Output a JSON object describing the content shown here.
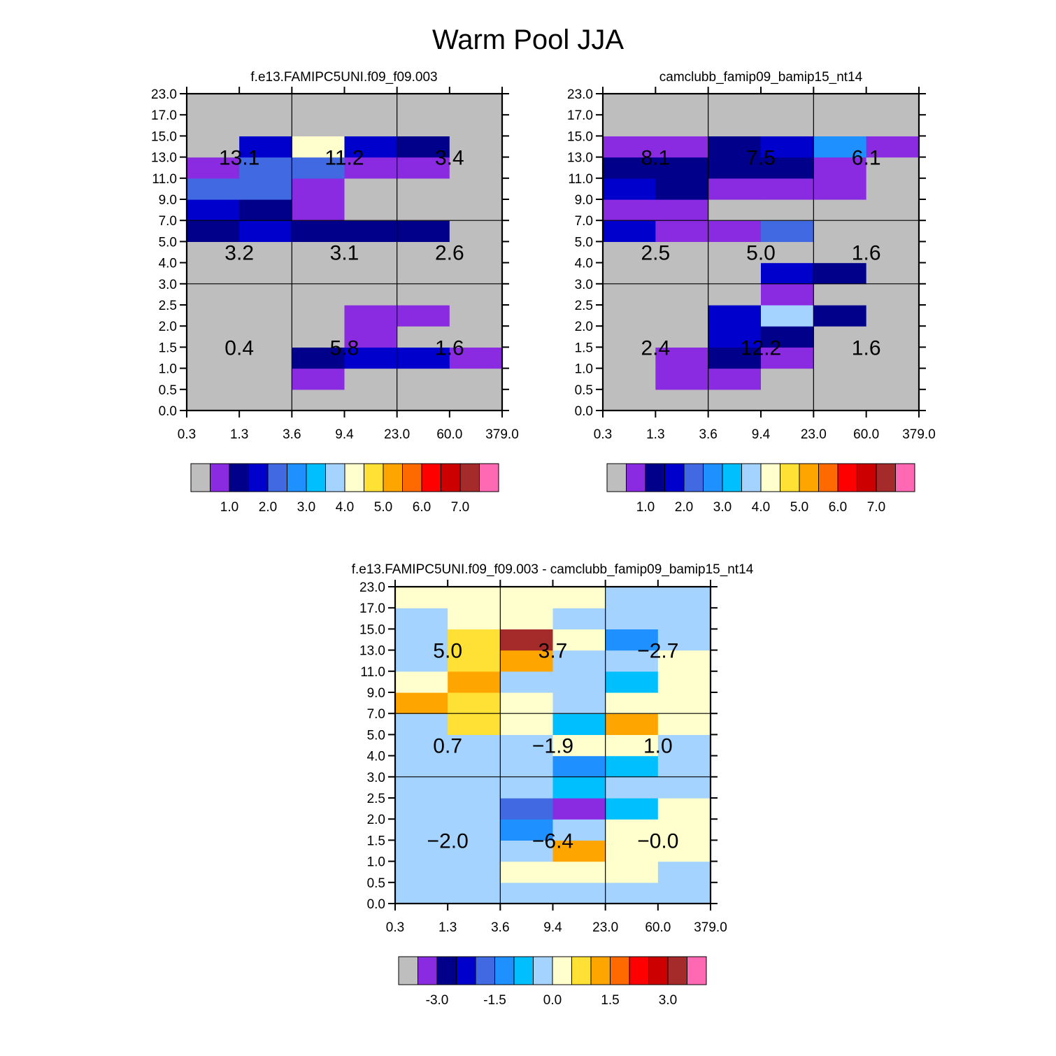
{
  "title": "Warm Pool JJA",
  "colors": {
    "palette": [
      "#bebebe",
      "#8a2be2",
      "#00008b",
      "#0000cd",
      "#4169e1",
      "#1e90ff",
      "#00bfff",
      "#a4d3ff",
      "#ffffcd",
      "#ffe135",
      "#ffa500",
      "#ff6a00",
      "#ff0000",
      "#cd0000",
      "#a52a2a",
      "#ff69b4"
    ],
    "grid_line": "#000000",
    "background": "#ffffff"
  },
  "chart_data": [
    {
      "type": "heatmap",
      "title": "f.e13.FAMIPC5UNI.f09_f09.003",
      "x_ticks": [
        "0.3",
        "1.3",
        "3.6",
        "9.4",
        "23.0",
        "60.0",
        "379.0"
      ],
      "y_ticks": [
        "0.0",
        "0.5",
        "1.0",
        "1.5",
        "2.0",
        "2.5",
        "3.0",
        "4.0",
        "5.0",
        "7.0",
        "9.0",
        "11.0",
        "13.0",
        "15.0",
        "17.0",
        "23.0"
      ],
      "colorbar_labels": [
        "1.0",
        "2.0",
        "3.0",
        "4.0",
        "5.0",
        "6.0",
        "7.0"
      ],
      "cell_color_index_rows_bottom_to_top": [
        [
          0,
          0,
          0,
          0,
          0,
          0
        ],
        [
          0,
          0,
          1,
          0,
          0,
          0
        ],
        [
          0,
          0,
          2,
          3,
          3,
          1
        ],
        [
          0,
          0,
          0,
          1,
          0,
          0
        ],
        [
          0,
          0,
          0,
          1,
          1,
          0
        ],
        [
          0,
          0,
          0,
          0,
          0,
          0
        ],
        [
          0,
          0,
          0,
          0,
          0,
          0
        ],
        [
          0,
          0,
          0,
          0,
          0,
          0
        ],
        [
          2,
          3,
          2,
          2,
          2,
          0
        ],
        [
          3,
          2,
          1,
          0,
          0,
          0
        ],
        [
          4,
          4,
          1,
          0,
          0,
          0
        ],
        [
          1,
          4,
          4,
          1,
          1,
          0
        ],
        [
          0,
          3,
          8,
          3,
          2,
          0
        ],
        [
          0,
          0,
          0,
          0,
          0,
          0
        ],
        [
          0,
          0,
          0,
          0,
          0,
          0
        ]
      ],
      "region_totals": [
        {
          "value": "13.1",
          "region": "high-thin"
        },
        {
          "value": "11.2",
          "region": "high-medium"
        },
        {
          "value": "3.4",
          "region": "high-thick"
        },
        {
          "value": "3.2",
          "region": "middle-thin"
        },
        {
          "value": "3.1",
          "region": "middle-medium"
        },
        {
          "value": "2.6",
          "region": "middle-thick"
        },
        {
          "value": "0.4",
          "region": "low-thin"
        },
        {
          "value": "5.8",
          "region": "low-medium"
        },
        {
          "value": "1.6",
          "region": "low-thick"
        }
      ]
    },
    {
      "type": "heatmap",
      "title": "camclubb_famip09_bamip15_nt14",
      "x_ticks": [
        "0.3",
        "1.3",
        "3.6",
        "9.4",
        "23.0",
        "60.0",
        "379.0"
      ],
      "y_ticks": [
        "0.0",
        "0.5",
        "1.0",
        "1.5",
        "2.0",
        "2.5",
        "3.0",
        "4.0",
        "5.0",
        "7.0",
        "9.0",
        "11.0",
        "13.0",
        "15.0",
        "17.0",
        "23.0"
      ],
      "colorbar_labels": [
        "1.0",
        "2.0",
        "3.0",
        "4.0",
        "5.0",
        "6.0",
        "7.0"
      ],
      "cell_color_index_rows_bottom_to_top": [
        [
          0,
          0,
          0,
          0,
          0,
          0
        ],
        [
          0,
          1,
          1,
          0,
          0,
          0
        ],
        [
          0,
          1,
          2,
          1,
          0,
          0
        ],
        [
          0,
          0,
          3,
          2,
          0,
          0
        ],
        [
          0,
          0,
          3,
          7,
          2,
          0
        ],
        [
          0,
          0,
          0,
          1,
          0,
          0
        ],
        [
          0,
          0,
          0,
          3,
          2,
          0
        ],
        [
          0,
          0,
          0,
          0,
          0,
          0
        ],
        [
          3,
          1,
          1,
          4,
          0,
          0
        ],
        [
          1,
          1,
          0,
          0,
          0,
          0
        ],
        [
          3,
          2,
          1,
          1,
          1,
          0
        ],
        [
          2,
          2,
          2,
          2,
          1,
          0
        ],
        [
          1,
          1,
          2,
          3,
          5,
          1
        ],
        [
          0,
          0,
          0,
          0,
          0,
          0
        ],
        [
          0,
          0,
          0,
          0,
          0,
          0
        ]
      ],
      "region_totals": [
        {
          "value": "8.1",
          "region": "high-thin"
        },
        {
          "value": "7.5",
          "region": "high-medium"
        },
        {
          "value": "6.1",
          "region": "high-thick"
        },
        {
          "value": "2.5",
          "region": "middle-thin"
        },
        {
          "value": "5.0",
          "region": "middle-medium"
        },
        {
          "value": "1.6",
          "region": "middle-thick"
        },
        {
          "value": "2.4",
          "region": "low-thin"
        },
        {
          "value": "12.2",
          "region": "low-medium"
        },
        {
          "value": "1.6",
          "region": "low-thick"
        }
      ]
    },
    {
      "type": "heatmap",
      "title": "f.e13.FAMIPC5UNI.f09_f09.003 - camclubb_famip09_bamip15_nt14",
      "x_ticks": [
        "0.3",
        "1.3",
        "3.6",
        "9.4",
        "23.0",
        "60.0",
        "379.0"
      ],
      "y_ticks": [
        "0.0",
        "0.5",
        "1.0",
        "1.5",
        "2.0",
        "2.5",
        "3.0",
        "4.0",
        "5.0",
        "7.0",
        "9.0",
        "11.0",
        "13.0",
        "15.0",
        "17.0",
        "23.0"
      ],
      "colorbar_labels": [
        "-3.0",
        "-1.5",
        "0.0",
        "1.5",
        "3.0"
      ],
      "cell_color_index_rows_bottom_to_top": [
        [
          7,
          7,
          7,
          7,
          7,
          7
        ],
        [
          7,
          7,
          8,
          8,
          8,
          7
        ],
        [
          7,
          7,
          7,
          10,
          8,
          8
        ],
        [
          7,
          7,
          5,
          7,
          8,
          8
        ],
        [
          7,
          7,
          4,
          1,
          6,
          8
        ],
        [
          7,
          7,
          7,
          6,
          7,
          7
        ],
        [
          7,
          7,
          7,
          5,
          6,
          7
        ],
        [
          7,
          7,
          7,
          8,
          8,
          7
        ],
        [
          7,
          9,
          8,
          6,
          10,
          8
        ],
        [
          10,
          9,
          8,
          7,
          8,
          8
        ],
        [
          8,
          10,
          7,
          7,
          6,
          8
        ],
        [
          7,
          9,
          10,
          7,
          7,
          8
        ],
        [
          7,
          9,
          14,
          8,
          5,
          7
        ],
        [
          7,
          8,
          8,
          7,
          7,
          7
        ],
        [
          8,
          8,
          8,
          8,
          7,
          7
        ]
      ],
      "region_totals": [
        {
          "value": "5.0",
          "region": "high-thin"
        },
        {
          "value": "3.7",
          "region": "high-medium"
        },
        {
          "value": "−2.7",
          "region": "high-thick"
        },
        {
          "value": "0.7",
          "region": "middle-thin"
        },
        {
          "value": "−1.9",
          "region": "middle-medium"
        },
        {
          "value": "1.0",
          "region": "middle-thick"
        },
        {
          "value": "−2.0",
          "region": "low-thin"
        },
        {
          "value": "−6.4",
          "region": "low-medium"
        },
        {
          "value": "−0.0",
          "region": "low-thick"
        }
      ]
    }
  ]
}
